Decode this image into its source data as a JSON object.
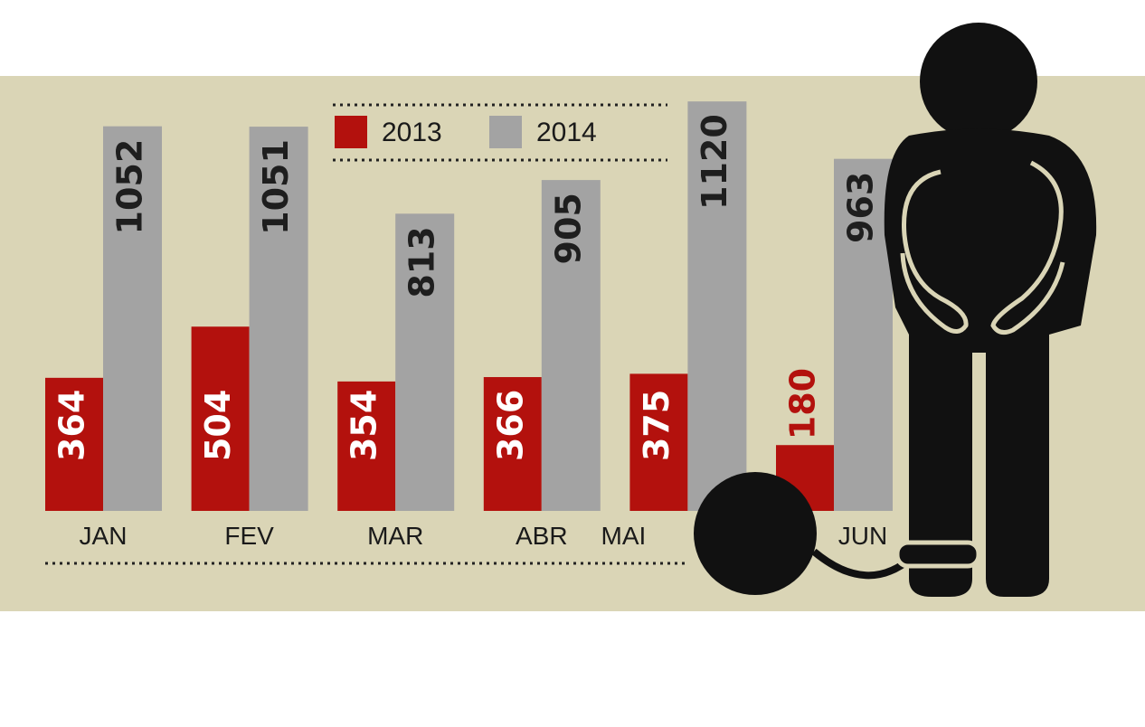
{
  "chart_data": {
    "type": "bar",
    "categories": [
      "JAN",
      "FEV",
      "MAR",
      "ABR",
      "MAI",
      "JUN"
    ],
    "series": [
      {
        "name": "2013",
        "color": "#b3110d",
        "values": [
          364,
          504,
          354,
          366,
          375,
          180
        ]
      },
      {
        "name": "2014",
        "color": "#a3a3a3",
        "values": [
          1052,
          1051,
          813,
          905,
          1120,
          963
        ]
      }
    ]
  }
}
